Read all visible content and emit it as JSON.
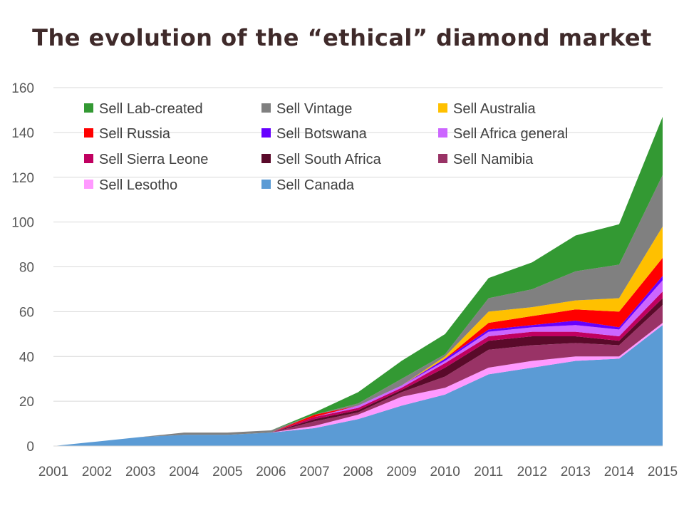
{
  "title": "The evolution of the “ethical” diamond market",
  "chart_data": {
    "type": "area",
    "stacked": true,
    "title": "The evolution of the “ethical” diamond market",
    "xlabel": "",
    "ylabel": "",
    "x": [
      "2001",
      "2002",
      "2003",
      "2004",
      "2005",
      "2006",
      "2007",
      "2008",
      "2009",
      "2010",
      "2011",
      "2012",
      "2013",
      "2014",
      "2015"
    ],
    "ylim": [
      0,
      160
    ],
    "yticks": [
      0,
      20,
      40,
      60,
      80,
      100,
      120,
      140,
      160
    ],
    "grid": "horizontal",
    "legend_position": "top-left",
    "series": [
      {
        "name": "Sell Canada",
        "color": "#5b9bd5",
        "values": [
          0,
          2,
          4,
          5,
          5,
          6,
          8,
          12,
          18,
          23,
          32,
          35,
          38,
          39,
          54
        ]
      },
      {
        "name": "Sell Lesotho",
        "color": "#ff99ff",
        "values": [
          0,
          0,
          0,
          0,
          0,
          0,
          1,
          2,
          4,
          3,
          3,
          3,
          2,
          1,
          1
        ]
      },
      {
        "name": "Sell Namibia",
        "color": "#993366",
        "values": [
          0,
          0,
          0,
          0,
          0,
          0,
          2,
          1,
          2,
          5,
          8,
          7,
          6,
          5,
          8
        ]
      },
      {
        "name": "Sell South Africa",
        "color": "#5a0a2a",
        "values": [
          0,
          0,
          0,
          0,
          0,
          0,
          1,
          1,
          1,
          4,
          4,
          4,
          3,
          2,
          3
        ]
      },
      {
        "name": "Sell Sierra Leone",
        "color": "#c00060",
        "values": [
          0,
          0,
          0,
          0,
          0,
          0,
          1,
          1,
          1,
          2,
          2,
          2,
          2,
          2,
          3
        ]
      },
      {
        "name": "Sell Africa general",
        "color": "#cc66ff",
        "values": [
          0,
          0,
          0,
          0,
          0,
          0,
          0,
          1,
          1,
          1,
          2,
          2,
          3,
          3,
          5
        ]
      },
      {
        "name": "Sell Botswana",
        "color": "#6600ff",
        "values": [
          0,
          0,
          0,
          0,
          0,
          0,
          0,
          0,
          0,
          1,
          1,
          1,
          2,
          1,
          2
        ]
      },
      {
        "name": "Sell Russia",
        "color": "#ff0000",
        "values": [
          0,
          0,
          0,
          0,
          0,
          0,
          1,
          0,
          0,
          0,
          3,
          4,
          5,
          7,
          8
        ]
      },
      {
        "name": "Sell Australia",
        "color": "#ffc000",
        "values": [
          0,
          0,
          0,
          0,
          0,
          0,
          0,
          0,
          0,
          1,
          5,
          4,
          4,
          6,
          14
        ]
      },
      {
        "name": "Sell Vintage",
        "color": "#808080",
        "values": [
          0,
          0,
          0,
          1,
          1,
          1,
          0,
          1,
          3,
          1,
          6,
          8,
          13,
          15,
          23
        ]
      },
      {
        "name": "Sell Lab-created",
        "color": "#339933",
        "values": [
          0,
          0,
          0,
          0,
          0,
          0,
          1,
          5,
          8,
          9,
          9,
          12,
          16,
          18,
          26
        ]
      }
    ],
    "legend_order": [
      "Sell Lab-created",
      "Sell Vintage",
      "Sell Australia",
      "Sell Russia",
      "Sell Botswana",
      "Sell Africa general",
      "Sell Sierra Leone",
      "Sell South Africa",
      "Sell Namibia",
      "Sell Lesotho",
      "Sell Canada"
    ]
  }
}
